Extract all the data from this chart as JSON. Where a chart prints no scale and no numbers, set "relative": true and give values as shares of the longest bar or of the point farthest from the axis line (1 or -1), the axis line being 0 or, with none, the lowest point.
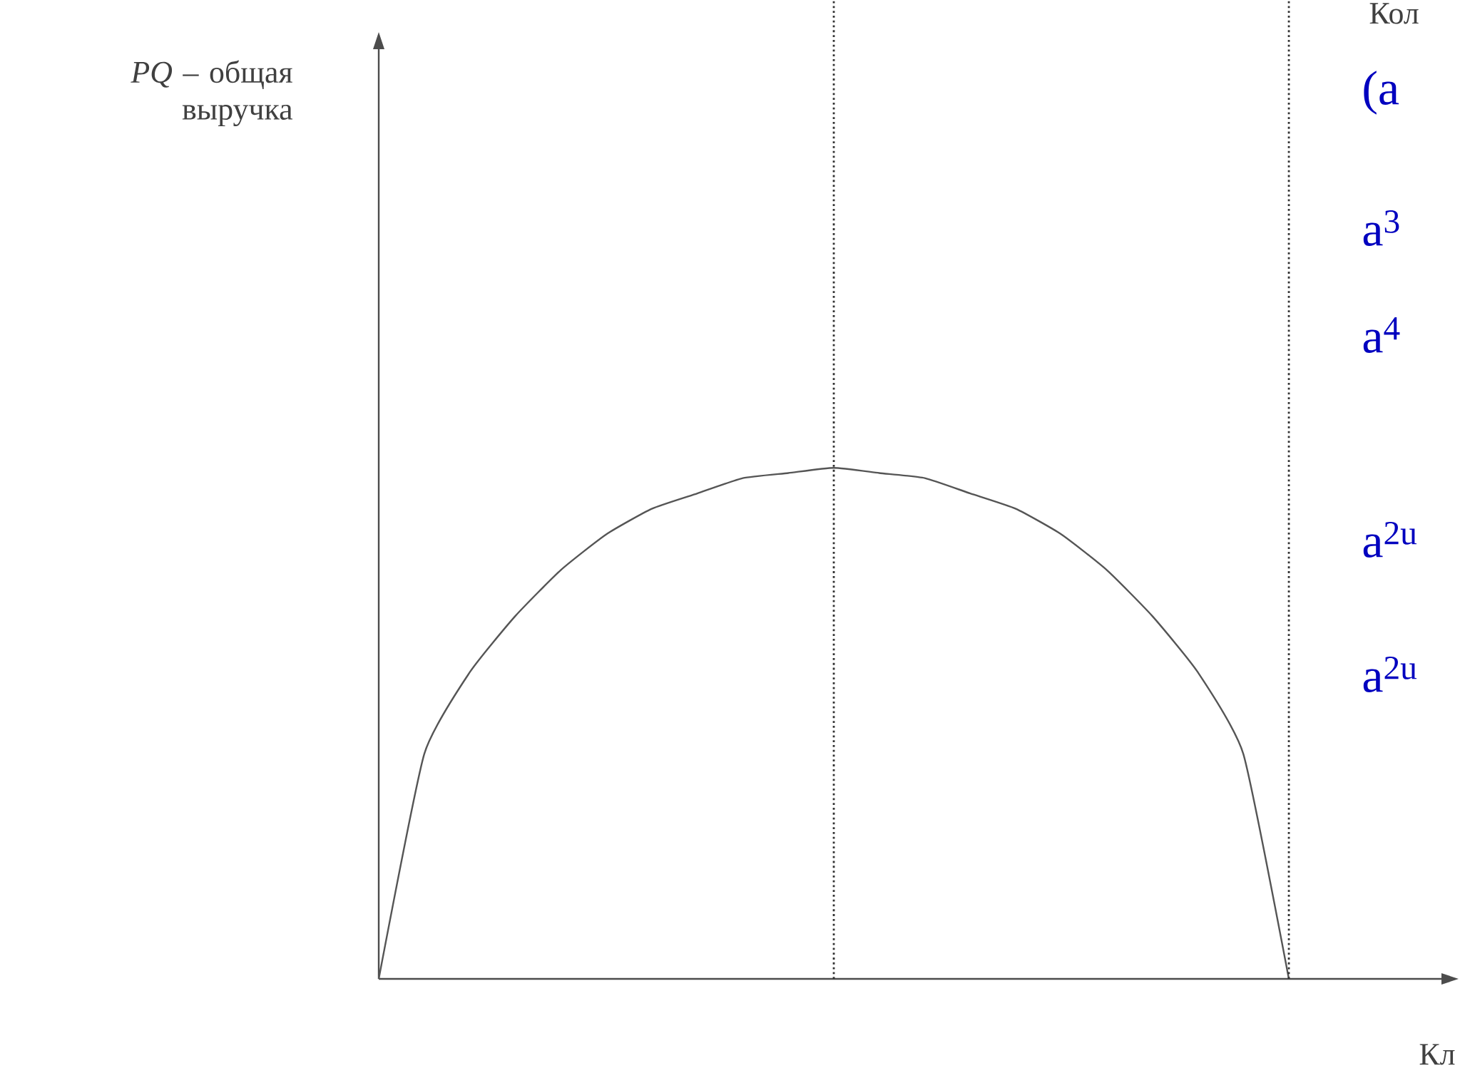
{
  "chart_data": {
    "type": "line",
    "relative": true,
    "categories": [
      null,
      null,
      null,
      null,
      null,
      null,
      null,
      null,
      null,
      null,
      null,
      null,
      null,
      null,
      null,
      null,
      null,
      null,
      null,
      null,
      null,
      null,
      null,
      null
    ],
    "series": [
      {
        "color": "#555555",
        "values": [
          0,
          0.44,
          0.6,
          0.71,
          0.8,
          0.87,
          0.92,
          0.95,
          0.98,
          0.99,
          1,
          0.99,
          0.98,
          0.95,
          0.92,
          0.87,
          0.8,
          0.71,
          0.6,
          0.44,
          0,
          null,
          null,
          null
        ]
      }
    ],
    "annotations": [
      "*PQ* – общая выручка",
      "Кол",
      "Кл",
      "(a",
      "a$^{3}$",
      "a$^{4}$",
      "a$^{2u}$",
      "a$^{2u}$"
    ],
    "marker": "none",
    "line_style": "solid"
  }
}
